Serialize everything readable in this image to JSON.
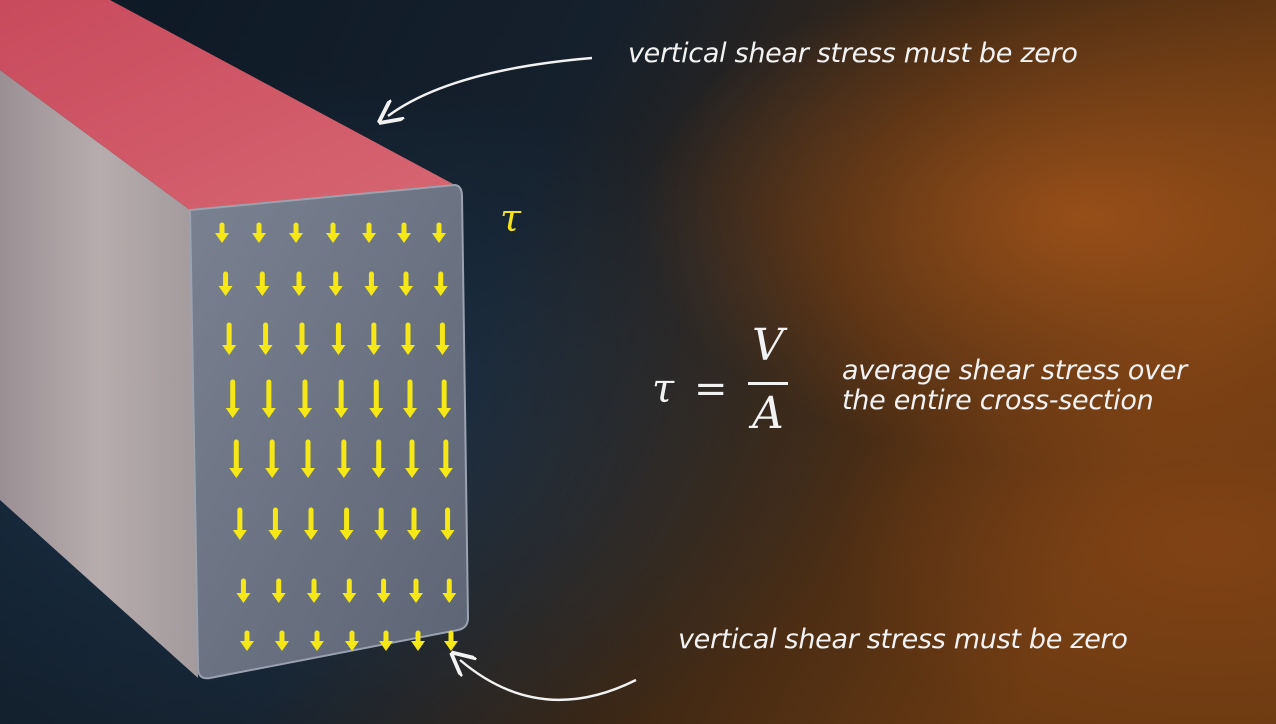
{
  "annotations": {
    "top": "vertical shear stress must be zero",
    "bottom": "vertical shear stress must be zero"
  },
  "symbol": {
    "tau": "τ"
  },
  "formula": {
    "lhs": "τ",
    "equals": "=",
    "numerator": "V",
    "denominator": "A"
  },
  "description": {
    "line1": "average shear stress over",
    "line2": "the entire cross-section"
  },
  "colors": {
    "arrow": "#f6e817",
    "beam_top": "#c8505f",
    "face": "#6e7686",
    "text": "#f2f2f2"
  }
}
